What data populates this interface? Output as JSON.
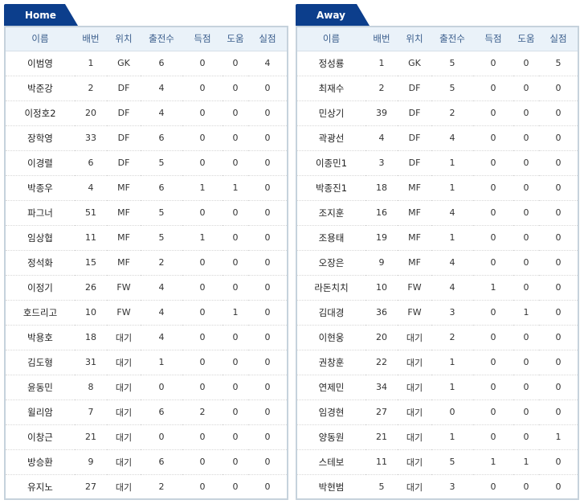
{
  "colors": {
    "tab": "#0c3e8c",
    "header_bg": "#eaf2f9",
    "header_text": "#3a5d8c",
    "border": "#c6d2dc"
  },
  "home": {
    "tab_label": "Home",
    "columns": [
      "이름",
      "배번",
      "위치",
      "출전수",
      "득점",
      "도움",
      "실점"
    ],
    "rows": [
      [
        "이범영",
        "1",
        "GK",
        "6",
        "0",
        "0",
        "4"
      ],
      [
        "박준강",
        "2",
        "DF",
        "4",
        "0",
        "0",
        "0"
      ],
      [
        "이정호2",
        "20",
        "DF",
        "4",
        "0",
        "0",
        "0"
      ],
      [
        "장학영",
        "33",
        "DF",
        "6",
        "0",
        "0",
        "0"
      ],
      [
        "이경렬",
        "6",
        "DF",
        "5",
        "0",
        "0",
        "0"
      ],
      [
        "박종우",
        "4",
        "MF",
        "6",
        "1",
        "1",
        "0"
      ],
      [
        "파그너",
        "51",
        "MF",
        "5",
        "0",
        "0",
        "0"
      ],
      [
        "임상협",
        "11",
        "MF",
        "5",
        "1",
        "0",
        "0"
      ],
      [
        "정석화",
        "15",
        "MF",
        "2",
        "0",
        "0",
        "0"
      ],
      [
        "이정기",
        "26",
        "FW",
        "4",
        "0",
        "0",
        "0"
      ],
      [
        "호드리고",
        "10",
        "FW",
        "4",
        "0",
        "1",
        "0"
      ],
      [
        "박용호",
        "18",
        "대기",
        "4",
        "0",
        "0",
        "0"
      ],
      [
        "김도형",
        "31",
        "대기",
        "1",
        "0",
        "0",
        "0"
      ],
      [
        "윤동민",
        "8",
        "대기",
        "0",
        "0",
        "0",
        "0"
      ],
      [
        "윌리암",
        "7",
        "대기",
        "6",
        "2",
        "0",
        "0"
      ],
      [
        "이창근",
        "21",
        "대기",
        "0",
        "0",
        "0",
        "0"
      ],
      [
        "방승환",
        "9",
        "대기",
        "6",
        "0",
        "0",
        "0"
      ],
      [
        "유지노",
        "27",
        "대기",
        "2",
        "0",
        "0",
        "0"
      ]
    ]
  },
  "away": {
    "tab_label": "Away",
    "columns": [
      "이름",
      "배번",
      "위치",
      "출전수",
      "득점",
      "도움",
      "실점"
    ],
    "rows": [
      [
        "정성룡",
        "1",
        "GK",
        "5",
        "0",
        "0",
        "5"
      ],
      [
        "최재수",
        "2",
        "DF",
        "5",
        "0",
        "0",
        "0"
      ],
      [
        "민상기",
        "39",
        "DF",
        "2",
        "0",
        "0",
        "0"
      ],
      [
        "곽광선",
        "4",
        "DF",
        "4",
        "0",
        "0",
        "0"
      ],
      [
        "이종민1",
        "3",
        "DF",
        "1",
        "0",
        "0",
        "0"
      ],
      [
        "박종진1",
        "18",
        "MF",
        "1",
        "0",
        "0",
        "0"
      ],
      [
        "조지훈",
        "16",
        "MF",
        "4",
        "0",
        "0",
        "0"
      ],
      [
        "조용태",
        "19",
        "MF",
        "1",
        "0",
        "0",
        "0"
      ],
      [
        "오장은",
        "9",
        "MF",
        "4",
        "0",
        "0",
        "0"
      ],
      [
        "라돈치치",
        "10",
        "FW",
        "4",
        "1",
        "0",
        "0"
      ],
      [
        "김대경",
        "36",
        "FW",
        "3",
        "0",
        "1",
        "0"
      ],
      [
        "이현웅",
        "20",
        "대기",
        "2",
        "0",
        "0",
        "0"
      ],
      [
        "권창훈",
        "22",
        "대기",
        "1",
        "0",
        "0",
        "0"
      ],
      [
        "연제민",
        "34",
        "대기",
        "1",
        "0",
        "0",
        "0"
      ],
      [
        "임경현",
        "27",
        "대기",
        "0",
        "0",
        "0",
        "0"
      ],
      [
        "양동원",
        "21",
        "대기",
        "1",
        "0",
        "0",
        "1"
      ],
      [
        "스테보",
        "11",
        "대기",
        "5",
        "1",
        "1",
        "0"
      ],
      [
        "박현범",
        "5",
        "대기",
        "3",
        "0",
        "0",
        "0"
      ]
    ]
  }
}
